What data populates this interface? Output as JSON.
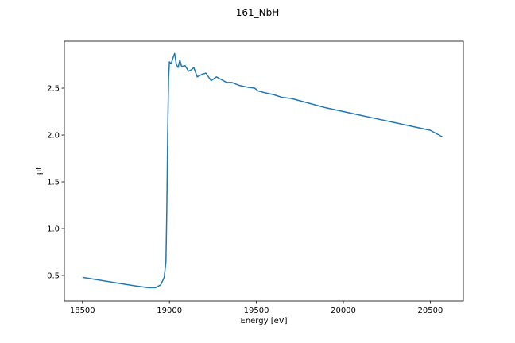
{
  "chart_data": {
    "type": "line",
    "title": "161_NbH",
    "x_label": "Energy [eV]",
    "y_label": "μt",
    "x": [
      18500,
      18600,
      18700,
      18800,
      18880,
      18920,
      18950,
      18970,
      18980,
      18985,
      18990,
      18995,
      19000,
      19010,
      19020,
      19030,
      19040,
      19050,
      19060,
      19070,
      19090,
      19110,
      19130,
      19140,
      19160,
      19190,
      19210,
      19240,
      19270,
      19300,
      19330,
      19360,
      19400,
      19450,
      19490,
      19510,
      19550,
      19600,
      19650,
      19700,
      19800,
      19900,
      20000,
      20100,
      20200,
      20300,
      20400,
      20500,
      20570
    ],
    "values": [
      0.48,
      0.45,
      0.42,
      0.39,
      0.37,
      0.37,
      0.4,
      0.48,
      0.65,
      1.2,
      2.0,
      2.6,
      2.78,
      2.76,
      2.82,
      2.87,
      2.75,
      2.72,
      2.8,
      2.73,
      2.74,
      2.68,
      2.7,
      2.72,
      2.62,
      2.65,
      2.66,
      2.58,
      2.62,
      2.59,
      2.56,
      2.56,
      2.53,
      2.51,
      2.5,
      2.47,
      2.45,
      2.43,
      2.4,
      2.39,
      2.34,
      2.29,
      2.25,
      2.21,
      2.17,
      2.13,
      2.09,
      2.05,
      1.98
    ],
    "color": "#1f77b4",
    "xlim": [
      18396,
      20690
    ],
    "xticks": [
      18500,
      19000,
      19500,
      20000,
      20500
    ],
    "ylim": [
      0.229,
      3.0
    ],
    "yticks": [
      0.5,
      {
        "value": 1.0,
        "label": "1.0"
      },
      1.5,
      {
        "value": 2.0,
        "label": "2.0"
      },
      2.5
    ],
    "grid": false
  }
}
